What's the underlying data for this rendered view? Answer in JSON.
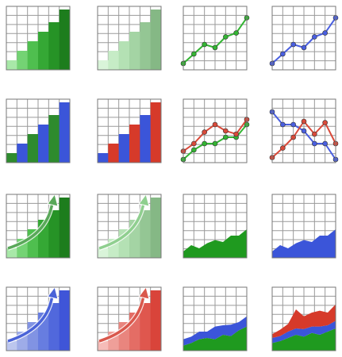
{
  "chart_data": [
    {
      "type": "bar",
      "ylim": [
        0,
        10
      ],
      "values": [
        1.5,
        3,
        4.5,
        6,
        7.5,
        9.5
      ],
      "colors": [
        "#a8e8a8",
        "#74d374",
        "#4fbf4f",
        "#35a835",
        "#269326",
        "#1d7d1d"
      ]
    },
    {
      "type": "bar",
      "ylim": [
        0,
        10
      ],
      "values": [
        1.5,
        3,
        4.5,
        6,
        7.5,
        9.5
      ],
      "colors": [
        "#d9f4d9",
        "#c6ecc6",
        "#b4e1b4",
        "#a4d4a4",
        "#94c694",
        "#85b885"
      ]
    },
    {
      "type": "line",
      "ylim": [
        0,
        10
      ],
      "series": [
        {
          "color": "#33b533",
          "values": [
            1,
            2.5,
            4,
            3.5,
            5.2,
            5.8,
            8.2
          ]
        }
      ]
    },
    {
      "type": "line",
      "ylim": [
        0,
        10
      ],
      "series": [
        {
          "color": "#4a5fe0",
          "values": [
            1,
            2.5,
            4,
            3.5,
            5.2,
            5.8,
            8.2
          ]
        }
      ]
    },
    {
      "type": "bar",
      "ylim": [
        0,
        10
      ],
      "values": [
        1.5,
        3,
        4.5,
        6,
        7.5,
        9.5
      ],
      "colors": [
        "#2e8b2e",
        "#3b55d9",
        "#2e8b2e",
        "#3b55d9",
        "#2e8b2e",
        "#3b55d9"
      ]
    },
    {
      "type": "bar",
      "ylim": [
        0,
        10
      ],
      "values": [
        1.5,
        3,
        4.5,
        6,
        7.5,
        9.5
      ],
      "colors": [
        "#3b55d9",
        "#d63a2a",
        "#3b55d9",
        "#d63a2a",
        "#3b55d9",
        "#d63a2a"
      ]
    },
    {
      "type": "line",
      "ylim": [
        0,
        10
      ],
      "series": [
        {
          "color": "#33b533",
          "values": [
            0.5,
            2,
            3,
            3,
            4,
            4,
            6
          ]
        },
        {
          "color": "#d94a3a",
          "values": [
            1.8,
            3,
            4.8,
            6,
            5,
            4.5,
            6.8
          ]
        }
      ]
    },
    {
      "type": "line",
      "ylim": [
        0,
        10
      ],
      "series": [
        {
          "color": "#4a5fe0",
          "values": [
            8,
            6,
            6,
            5,
            3,
            3,
            0.5
          ]
        },
        {
          "color": "#d94a3a",
          "values": [
            0.8,
            2.3,
            4,
            6.5,
            4.5,
            6.3,
            3
          ]
        }
      ]
    },
    {
      "type": "bar",
      "ylim": [
        0,
        10
      ],
      "values": [
        1.5,
        3,
        4.5,
        6,
        7.5,
        9.5
      ],
      "colors": [
        "#a8e8a8",
        "#74d374",
        "#4fbf4f",
        "#35a835",
        "#269326",
        "#1d7d1d"
      ],
      "arrow": "#5aa85a"
    },
    {
      "type": "bar",
      "ylim": [
        0,
        10
      ],
      "values": [
        1.5,
        3,
        4.5,
        6,
        7.5,
        9.5
      ],
      "colors": [
        "#d9f4d9",
        "#c6ecc6",
        "#b4e1b4",
        "#a4d4a4",
        "#94c694",
        "#85b885"
      ],
      "arrow": "#8fcf8f"
    },
    {
      "type": "area",
      "ylim": [
        0,
        10
      ],
      "series": [
        {
          "color": "#1f9a1f",
          "values": [
            1,
            2,
            1.5,
            2.3,
            2.8,
            2.5,
            3.5,
            3.5,
            4.5
          ]
        }
      ]
    },
    {
      "type": "area",
      "ylim": [
        0,
        10
      ],
      "series": [
        {
          "color": "#3b55d9",
          "values": [
            1,
            2,
            1.5,
            2.3,
            2.8,
            2.5,
            3.5,
            3.5,
            4.5
          ]
        }
      ]
    },
    {
      "type": "bar",
      "ylim": [
        0,
        10
      ],
      "values": [
        1.5,
        3,
        4.5,
        6,
        7.5,
        9.5
      ],
      "colors": [
        "#bcc6ee",
        "#9eace8",
        "#8193e3",
        "#677de0",
        "#5168dc",
        "#3f55d8"
      ],
      "arrow": "#4a63d8"
    },
    {
      "type": "bar",
      "ylim": [
        0,
        10
      ],
      "values": [
        1.5,
        3,
        4.5,
        6,
        7.5,
        9.5
      ],
      "colors": [
        "#f6bcb8",
        "#ef9f99",
        "#e9857e",
        "#e46d65",
        "#df574e",
        "#d9443a"
      ],
      "arrow": "#d9584c"
    },
    {
      "type": "area",
      "ylim": [
        0,
        10
      ],
      "stacked": true,
      "series": [
        {
          "color": "#1f9a1f",
          "values": [
            0.8,
            1.2,
            1.8,
            2,
            1.8,
            2.5,
            2.3,
            3.2,
            3.8
          ]
        },
        {
          "color": "#3b55d9",
          "values": [
            1,
            1,
            1.2,
            1,
            2,
            1.5,
            1.8,
            1.3,
            1.6
          ]
        }
      ]
    },
    {
      "type": "area",
      "ylim": [
        0,
        10
      ],
      "stacked": true,
      "series": [
        {
          "color": "#1f9a1f",
          "values": [
            1.2,
            1.5,
            2,
            2.5,
            2.2,
            2.8,
            2.5,
            3,
            3.5
          ]
        },
        {
          "color": "#3b55d9",
          "values": [
            0.8,
            0.8,
            1,
            1,
            1.2,
            1,
            1.3,
            1,
            1.2
          ]
        },
        {
          "color": "#d63a2a",
          "values": [
            0.6,
            1,
            1.2,
            3,
            2,
            2.2,
            2.5,
            2,
            2.6
          ]
        }
      ]
    }
  ]
}
